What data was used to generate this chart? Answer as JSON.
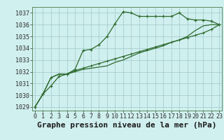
{
  "title": "Graphe pression niveau de la mer (hPa)",
  "x_labels": [
    "0",
    "1",
    "2",
    "3",
    "4",
    "5",
    "6",
    "7",
    "8",
    "9",
    "10",
    "11",
    "12",
    "13",
    "14",
    "15",
    "16",
    "17",
    "18",
    "19",
    "20",
    "21",
    "22",
    "23"
  ],
  "x_values": [
    0,
    1,
    2,
    3,
    4,
    5,
    6,
    7,
    8,
    9,
    10,
    11,
    12,
    13,
    14,
    15,
    16,
    17,
    18,
    19,
    20,
    21,
    22,
    23
  ],
  "series1": [
    1029.0,
    1030.1,
    1030.8,
    1031.6,
    1031.8,
    1032.2,
    1033.8,
    1033.9,
    1034.3,
    1035.0,
    1036.1,
    1037.1,
    1037.0,
    1036.7,
    1036.7,
    1036.7,
    1036.7,
    1036.7,
    1037.0,
    1036.5,
    1036.4,
    1036.4,
    1036.3,
    1036.0
  ],
  "series2": [
    1029.0,
    1030.1,
    1031.5,
    1031.8,
    1031.8,
    1032.1,
    1032.3,
    1032.5,
    1032.7,
    1032.9,
    1033.1,
    1033.3,
    1033.5,
    1033.7,
    1033.9,
    1034.1,
    1034.3,
    1034.5,
    1034.7,
    1034.9,
    1035.1,
    1035.3,
    1035.6,
    1036.0
  ],
  "series3": [
    1029.0,
    1030.1,
    1031.5,
    1031.8,
    1031.8,
    1032.0,
    1032.2,
    1032.3,
    1032.4,
    1032.5,
    1032.8,
    1033.0,
    1033.3,
    1033.6,
    1033.8,
    1034.0,
    1034.2,
    1034.5,
    1034.7,
    1035.0,
    1035.5,
    1035.9,
    1036.0,
    1036.0
  ],
  "line_color": "#2d6a2d",
  "bg_color": "#d0efef",
  "grid_color": "#a0c8c8",
  "ylim_min": 1029,
  "ylim_max": 1037.5,
  "yticks": [
    1029,
    1030,
    1031,
    1032,
    1033,
    1034,
    1035,
    1036,
    1037
  ],
  "title_fontsize": 8,
  "tick_fontsize": 6
}
